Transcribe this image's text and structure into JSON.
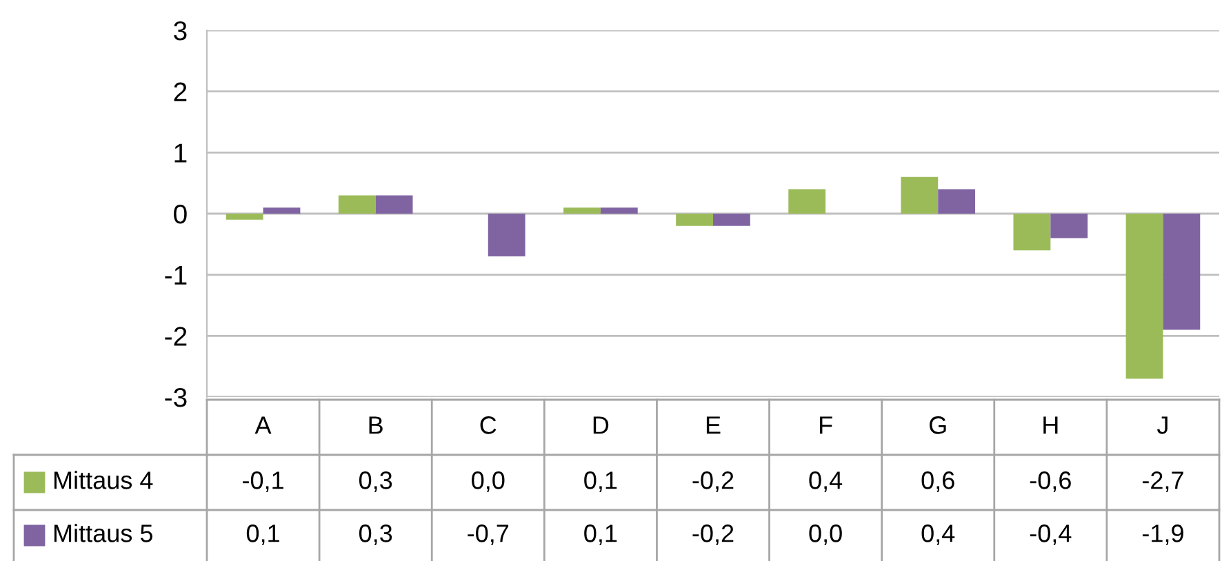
{
  "chart_data": {
    "type": "bar",
    "categories": [
      "A",
      "B",
      "C",
      "D",
      "E",
      "F",
      "G",
      "H",
      "J"
    ],
    "series": [
      {
        "name": "Mittaus 4",
        "color": "#9bbb59",
        "values": [
          -0.1,
          0.3,
          0.0,
          0.1,
          -0.2,
          0.4,
          0.6,
          -0.6,
          -2.7
        ],
        "value_labels": [
          "-0,1",
          "0,3",
          "0,0",
          "0,1",
          "-0,2",
          "0,4",
          "0,6",
          "-0,6",
          "-2,7"
        ]
      },
      {
        "name": "Mittaus 5",
        "color": "#8064a2",
        "values": [
          0.1,
          0.3,
          -0.7,
          0.1,
          -0.2,
          0.0,
          0.4,
          -0.4,
          -1.9
        ],
        "value_labels": [
          "0,1",
          "0,3",
          "-0,7",
          "0,1",
          "-0,2",
          "0,0",
          "0,4",
          "-0,4",
          "-1,9"
        ]
      }
    ],
    "ylim": [
      -3,
      3
    ],
    "yticks": [
      -3,
      -2,
      -1,
      0,
      1,
      2,
      3
    ],
    "grid": "y",
    "legend": "bottom",
    "data_labels": true
  }
}
